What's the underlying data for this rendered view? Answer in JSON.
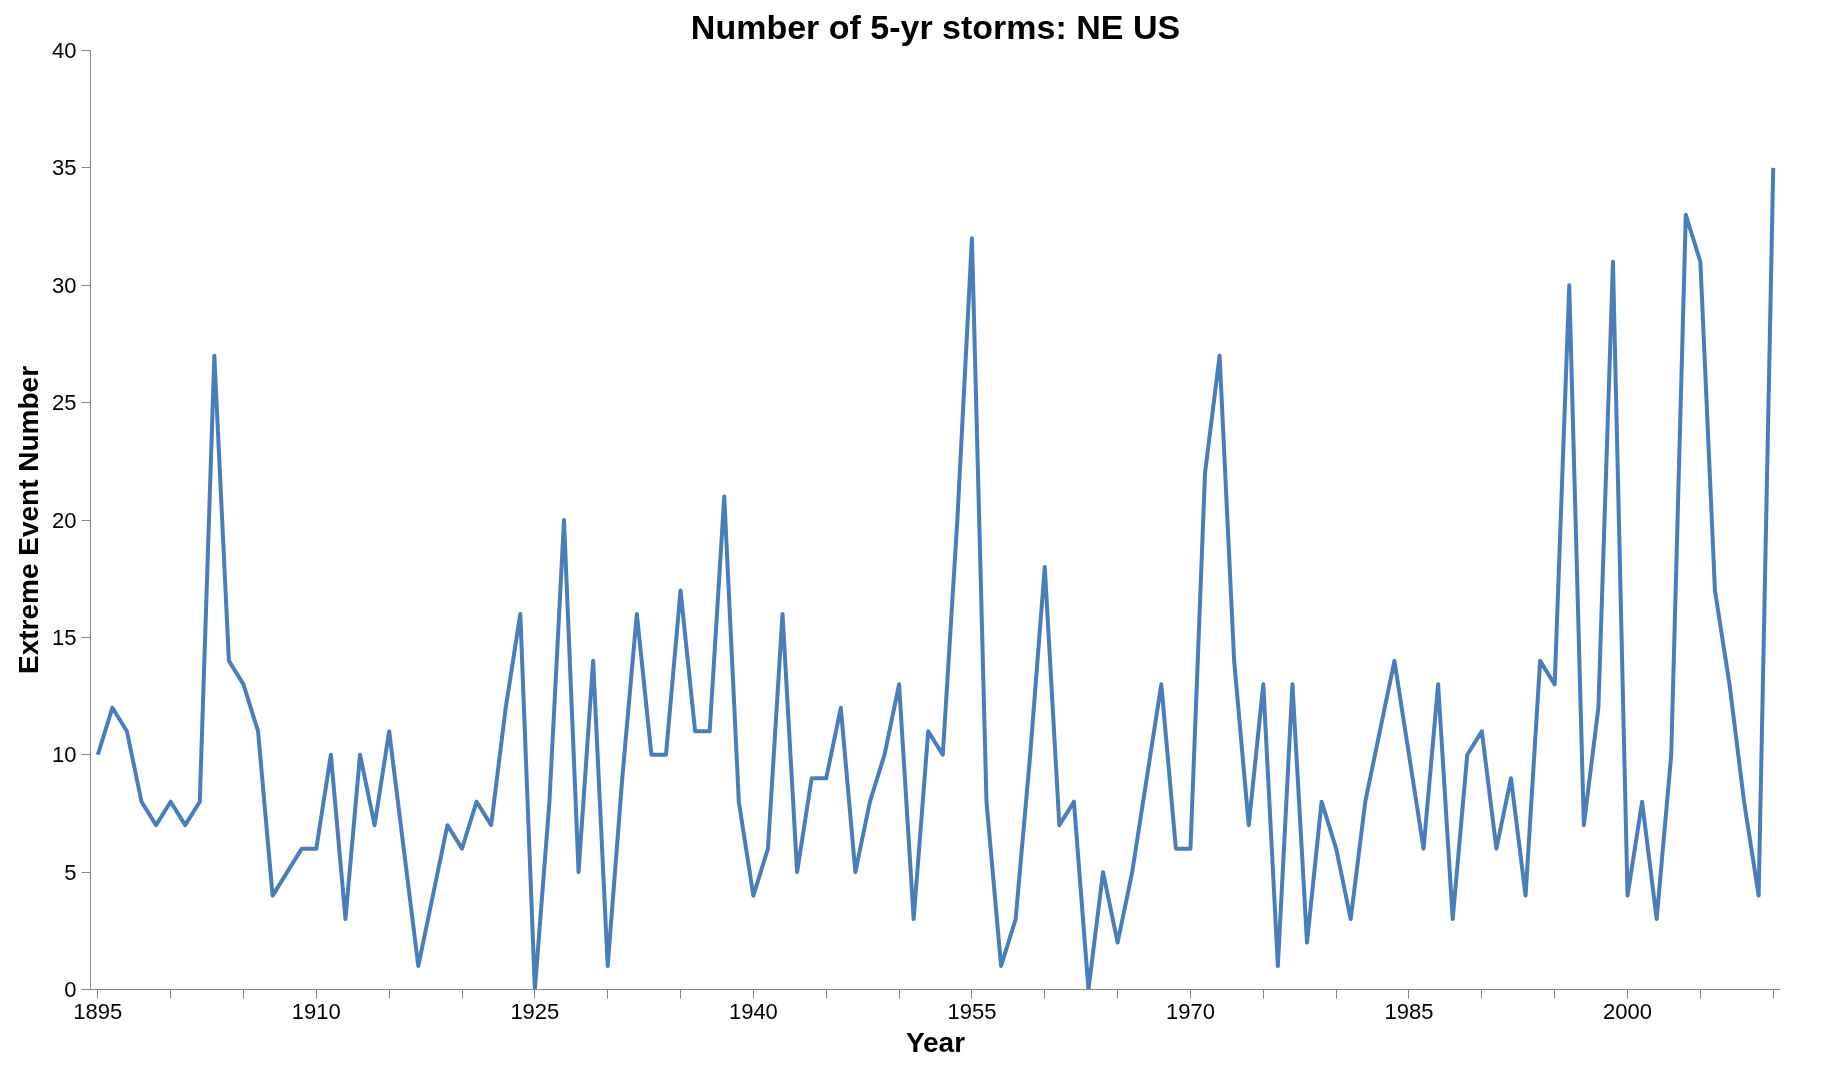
{
  "chart_data": {
    "type": "line",
    "title": "Number of 5-yr storms: NE US",
    "xlabel": "Year",
    "ylabel": "Extreme Event Number",
    "x": [
      1895,
      1896,
      1897,
      1898,
      1899,
      1900,
      1901,
      1902,
      1903,
      1904,
      1905,
      1906,
      1907,
      1908,
      1909,
      1910,
      1911,
      1912,
      1913,
      1914,
      1915,
      1916,
      1917,
      1918,
      1919,
      1920,
      1921,
      1922,
      1923,
      1924,
      1925,
      1926,
      1927,
      1928,
      1929,
      1930,
      1931,
      1932,
      1933,
      1934,
      1935,
      1936,
      1937,
      1938,
      1939,
      1940,
      1941,
      1942,
      1943,
      1944,
      1945,
      1946,
      1947,
      1948,
      1949,
      1950,
      1951,
      1952,
      1953,
      1954,
      1955,
      1956,
      1957,
      1958,
      1959,
      1960,
      1961,
      1962,
      1963,
      1964,
      1965,
      1966,
      1967,
      1968,
      1969,
      1970,
      1971,
      1972,
      1973,
      1974,
      1975,
      1976,
      1977,
      1978,
      1979,
      1980,
      1981,
      1982,
      1983,
      1984,
      1985,
      1986,
      1987,
      1988,
      1989,
      1990,
      1991,
      1992,
      1993,
      1994,
      1995,
      1996,
      1997,
      1998,
      1999,
      2000,
      2001,
      2002,
      2003,
      2004,
      2005,
      2006,
      2007,
      2008,
      2009,
      2010
    ],
    "series": [
      {
        "color": "#4a7ebb",
        "values": [
          10,
          12,
          11,
          8,
          7,
          8,
          7,
          8,
          27,
          14,
          13,
          11,
          4,
          5,
          6,
          6,
          10,
          3,
          10,
          7,
          11,
          6,
          1,
          4,
          7,
          6,
          8,
          7,
          12,
          16,
          0,
          8,
          20,
          5,
          14,
          1,
          9,
          16,
          10,
          10,
          17,
          11,
          11,
          21,
          8,
          4,
          6,
          16,
          5,
          9,
          9,
          12,
          5,
          8,
          10,
          13,
          3,
          11,
          10,
          20,
          32,
          8,
          1,
          3,
          10,
          18,
          7,
          8,
          0,
          5,
          2,
          5,
          9,
          13,
          6,
          6,
          22,
          27,
          14,
          7,
          13,
          1,
          13,
          2,
          8,
          6,
          3,
          8,
          11,
          14,
          10,
          6,
          13,
          3,
          10,
          11,
          6,
          9,
          4,
          14,
          13,
          30,
          7,
          12,
          31,
          4,
          8,
          3,
          10,
          33,
          31,
          17,
          13,
          8,
          4,
          35
        ]
      }
    ],
    "xlim": [
      1894.5,
      2010.5
    ],
    "xticks": [
      {
        "value": 1895,
        "label": "1895"
      },
      {
        "value": 1900,
        "label": null
      },
      {
        "value": 1905,
        "label": null
      },
      {
        "value": 1910,
        "label": "1910"
      },
      {
        "value": 1915,
        "label": null
      },
      {
        "value": 1920,
        "label": null
      },
      {
        "value": 1925,
        "label": "1925"
      },
      {
        "value": 1930,
        "label": null
      },
      {
        "value": 1935,
        "label": null
      },
      {
        "value": 1940,
        "label": "1940"
      },
      {
        "value": 1945,
        "label": null
      },
      {
        "value": 1950,
        "label": null
      },
      {
        "value": 1955,
        "label": "1955"
      },
      {
        "value": 1960,
        "label": null
      },
      {
        "value": 1965,
        "label": null
      },
      {
        "value": 1970,
        "label": "1970"
      },
      {
        "value": 1975,
        "label": null
      },
      {
        "value": 1980,
        "label": null
      },
      {
        "value": 1985,
        "label": "1985"
      },
      {
        "value": 1990,
        "label": null
      },
      {
        "value": 1995,
        "label": null
      },
      {
        "value": 2000,
        "label": "2000"
      },
      {
        "value": 2005,
        "label": null
      },
      {
        "value": 2010,
        "label": null
      }
    ],
    "ylim": [
      0,
      40
    ],
    "yticks": [
      0,
      5,
      10,
      15,
      20,
      25,
      30,
      35,
      40
    ],
    "grid": false,
    "marker": "none",
    "line_style": "solid"
  }
}
